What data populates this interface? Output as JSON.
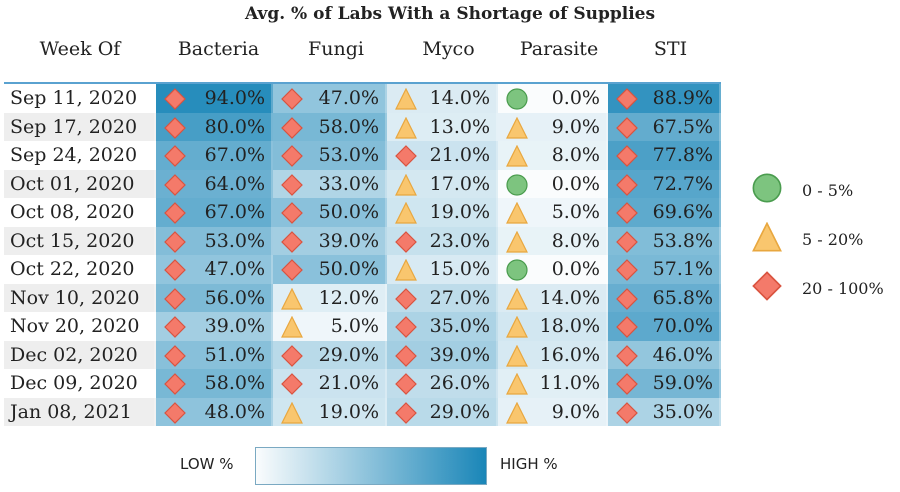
{
  "chart_data": {
    "type": "heatmap",
    "title": "Avg. % of Labs With a Shortage of Supplies",
    "row_header": "Week Of",
    "columns": [
      "Bacteria",
      "Fungi",
      "Myco",
      "Parasite",
      "STI"
    ],
    "rows": [
      "Sep 11, 2020",
      "Sep 17, 2020",
      "Sep 24, 2020",
      "Oct 01, 2020",
      "Oct 08, 2020",
      "Oct 15, 2020",
      "Oct 22, 2020",
      "Nov 10, 2020",
      "Nov 20, 2020",
      "Dec 02, 2020",
      "Dec 09, 2020",
      "Jan 08, 2021"
    ],
    "values": [
      [
        94.0,
        47.0,
        14.0,
        0.0,
        88.9
      ],
      [
        80.0,
        58.0,
        13.0,
        9.0,
        67.5
      ],
      [
        67.0,
        53.0,
        21.0,
        8.0,
        77.8
      ],
      [
        64.0,
        33.0,
        17.0,
        0.0,
        72.7
      ],
      [
        67.0,
        50.0,
        19.0,
        5.0,
        69.6
      ],
      [
        53.0,
        39.0,
        23.0,
        8.0,
        53.8
      ],
      [
        47.0,
        50.0,
        15.0,
        0.0,
        57.1
      ],
      [
        56.0,
        12.0,
        27.0,
        14.0,
        65.8
      ],
      [
        39.0,
        5.0,
        35.0,
        18.0,
        70.0
      ],
      [
        51.0,
        29.0,
        39.0,
        16.0,
        46.0
      ],
      [
        58.0,
        21.0,
        26.0,
        11.0,
        59.0
      ],
      [
        48.0,
        19.0,
        29.0,
        9.0,
        35.0
      ]
    ],
    "value_format": "0.0%",
    "color_scale": {
      "low": "#fafcfd",
      "high": "#1a86b8",
      "low_label": "LOW %",
      "high_label": "HIGH %",
      "range": [
        0,
        100
      ]
    },
    "shape_legend": [
      {
        "label": "0 - 5%",
        "shape": "circle",
        "color": "#7dc47f"
      },
      {
        "label": "5 - 20%",
        "shape": "triangle",
        "color": "#f9c66e"
      },
      {
        "label": "20 - 100%",
        "shape": "diamond",
        "color": "#f47a6a"
      }
    ],
    "legend_placement": "right"
  }
}
